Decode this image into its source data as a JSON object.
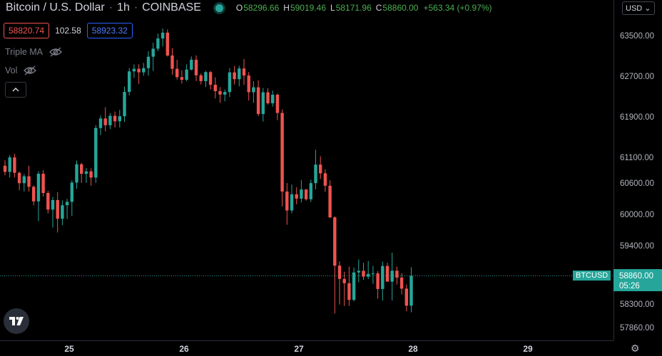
{
  "header": {
    "symbol_title": "Bitcoin / U.S. Dollar",
    "interval": "1h",
    "exchange": "COINBASE",
    "ohlc": {
      "o_key": "O",
      "o": "58296.66",
      "h_key": "H",
      "h": "59019.46",
      "l_key": "L",
      "l": "58171.96",
      "c_key": "C",
      "c": "58860.00",
      "change": "+563.34 (+0.97%)"
    },
    "status_color": "#26a69a"
  },
  "trade": {
    "sell_price": "58820.74",
    "spread": "102.58",
    "buy_price": "58923.32"
  },
  "indicators": [
    {
      "label": "Triple MA",
      "icon": "eye-slash-icon"
    },
    {
      "label": "Vol",
      "icon": "eye-slash-icon"
    }
  ],
  "collapse_icon": "chevron-up-icon",
  "currency_selector": "USD",
  "price_axis": {
    "ticks": [
      "63500.00",
      "62700.00",
      "61900.00",
      "61100.00",
      "60600.00",
      "60000.00",
      "59400.00",
      "58300.00",
      "57860.00"
    ]
  },
  "last_price": {
    "symbol": "BTCUSD",
    "price": "58860.00",
    "countdown": "05:26"
  },
  "time_axis": {
    "ticks": [
      "25",
      "26",
      "27",
      "28",
      "29"
    ]
  },
  "colors": {
    "up": "#26a69a",
    "down": "#ef5350",
    "background": "#000000"
  },
  "chart_data": {
    "type": "candlestick",
    "interval": "1h",
    "y_axis_labels": [
      63500,
      62700,
      61900,
      61100,
      60600,
      60000,
      59400,
      58300,
      57860
    ],
    "x_axis_labels": [
      "25",
      "26",
      "27",
      "28",
      "29"
    ],
    "candles": [
      [
        60964,
        61071,
        60781,
        60844
      ],
      [
        60844,
        61174,
        60734,
        61127
      ],
      [
        61127,
        61199,
        60734,
        60827
      ],
      [
        60827,
        60849,
        60487,
        60624
      ],
      [
        60624,
        60803,
        60466,
        60759
      ],
      [
        60759,
        60965,
        60466,
        60554
      ],
      [
        60554,
        60584,
        60198,
        60275
      ],
      [
        60275,
        60859,
        59898,
        60808
      ],
      [
        60808,
        60880,
        60367,
        60436
      ],
      [
        60436,
        60477,
        60043,
        60118
      ],
      [
        60118,
        60361,
        59775,
        60301
      ],
      [
        60301,
        60449,
        59679,
        59942
      ],
      [
        59942,
        60295,
        59820,
        60201
      ],
      [
        60201,
        60323,
        59938,
        60266
      ],
      [
        60266,
        60681,
        59998,
        60636
      ],
      [
        60636,
        61065,
        60516,
        60993
      ],
      [
        60993,
        61019,
        60629,
        60807
      ],
      [
        60807,
        60919,
        60629,
        60854
      ],
      [
        60854,
        60913,
        60576,
        60734
      ],
      [
        60734,
        61762,
        60629,
        61707
      ],
      [
        61707,
        61955,
        61569,
        61894
      ],
      [
        61894,
        62117,
        61640,
        61762
      ],
      [
        61762,
        62002,
        61685,
        61947
      ],
      [
        61947,
        62032,
        61717,
        61839
      ],
      [
        61839,
        62063,
        61717,
        61939
      ],
      [
        61939,
        62524,
        61826,
        62418
      ],
      [
        62418,
        62889,
        62349,
        62823
      ],
      [
        62823,
        62962,
        62695,
        62874
      ],
      [
        62874,
        62964,
        62575,
        62804
      ],
      [
        62804,
        62990,
        62738,
        62887
      ],
      [
        62887,
        63219,
        62738,
        63112
      ],
      [
        63112,
        63389,
        62832,
        63270
      ],
      [
        63270,
        63569,
        63222,
        63472
      ],
      [
        63472,
        63668,
        63315,
        63586
      ],
      [
        63586,
        63649,
        63115,
        63136
      ],
      [
        63136,
        63280,
        62758,
        62874
      ],
      [
        62874,
        63052,
        62662,
        62709
      ],
      [
        62709,
        62843,
        62584,
        62657
      ],
      [
        62657,
        62963,
        62630,
        62858
      ],
      [
        62858,
        63118,
        62839,
        63053
      ],
      [
        63053,
        63139,
        62631,
        62745
      ],
      [
        62745,
        62781,
        62564,
        62631
      ],
      [
        62631,
        62835,
        62514,
        62808
      ],
      [
        62808,
        62834,
        62466,
        62559
      ],
      [
        62559,
        62706,
        62290,
        62433
      ],
      [
        62433,
        62513,
        62203,
        62366
      ],
      [
        62366,
        62465,
        62233,
        62416
      ],
      [
        62416,
        62886,
        62319,
        62803
      ],
      [
        62803,
        62932,
        62564,
        62669
      ],
      [
        62669,
        62932,
        62528,
        62880
      ],
      [
        62880,
        63067,
        62558,
        62741
      ],
      [
        62741,
        62809,
        62250,
        62412
      ],
      [
        62412,
        62630,
        62203,
        62509
      ],
      [
        62509,
        62647,
        61943,
        61982
      ],
      [
        61982,
        62495,
        61835,
        62411
      ],
      [
        62411,
        62490,
        62168,
        62194
      ],
      [
        62194,
        62444,
        62128,
        62363
      ],
      [
        62363,
        62386,
        61860,
        62004
      ],
      [
        62004,
        62071,
        60179,
        60463
      ],
      [
        60463,
        60627,
        59828,
        60101
      ],
      [
        60101,
        60599,
        60047,
        60411
      ],
      [
        60411,
        60546,
        60218,
        60328
      ],
      [
        60328,
        60688,
        60253,
        60503
      ],
      [
        60503,
        60511,
        60288,
        60315
      ],
      [
        60315,
        60692,
        60266,
        60625
      ],
      [
        60625,
        61275,
        60505,
        60987
      ],
      [
        60987,
        61150,
        60707,
        60817
      ],
      [
        60817,
        60894,
        60456,
        60575
      ],
      [
        60575,
        60680,
        59954,
        59969
      ],
      [
        59969,
        59988,
        58152,
        59050
      ],
      [
        59050,
        59129,
        58318,
        58800
      ],
      [
        58800,
        58936,
        58290,
        58719
      ],
      [
        58719,
        59032,
        58290,
        58405
      ],
      [
        58405,
        59014,
        58379,
        58922
      ],
      [
        58922,
        59167,
        58737,
        58952
      ],
      [
        58952,
        59103,
        58780,
        58843
      ],
      [
        58843,
        59139,
        58797,
        58894
      ],
      [
        58894,
        59045,
        58708,
        58904
      ],
      [
        58904,
        58949,
        58426,
        58610
      ],
      [
        58610,
        59125,
        58393,
        59043
      ],
      [
        59043,
        59103,
        58745,
        58749
      ],
      [
        58749,
        59294,
        58393,
        58954
      ],
      [
        58954,
        59032,
        58697,
        58825
      ],
      [
        58825,
        58907,
        58509,
        58617
      ],
      [
        58617,
        58694,
        58190,
        58296
      ],
      [
        58296,
        59019,
        58172,
        58860
      ]
    ]
  }
}
